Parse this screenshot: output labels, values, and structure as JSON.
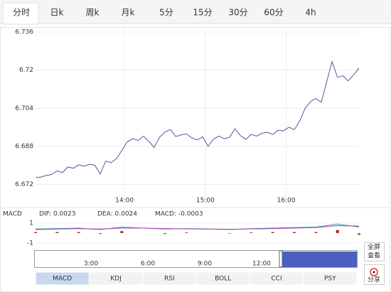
{
  "tabs": [
    "分时",
    "日k",
    "周k",
    "月k",
    "5分",
    "15分",
    "30分",
    "60分",
    "4h"
  ],
  "active_tab": 0,
  "chart_data": [
    {
      "type": "line",
      "color": "#4a5e9a",
      "grid": true,
      "x": [
        "12:54",
        "12:58",
        "13:02",
        "13:06",
        "13:10",
        "13:14",
        "13:18",
        "13:22",
        "13:26",
        "13:30",
        "13:34",
        "13:38",
        "13:42",
        "13:46",
        "13:50",
        "13:54",
        "13:58",
        "14:02",
        "14:06",
        "14:10",
        "14:14",
        "14:18",
        "14:22",
        "14:26",
        "14:30",
        "14:34",
        "14:38",
        "14:42",
        "14:46",
        "14:50",
        "14:54",
        "14:58",
        "15:02",
        "15:06",
        "15:10",
        "15:14",
        "15:18",
        "15:22",
        "15:26",
        "15:30",
        "15:34",
        "15:38",
        "15:42",
        "15:46",
        "15:50",
        "15:54",
        "15:58",
        "16:02",
        "16:06",
        "16:10",
        "16:14",
        "16:18",
        "16:22",
        "16:26",
        "16:30",
        "16:34",
        "16:38",
        "16:42",
        "16:46",
        "16:50",
        "16:54"
      ],
      "values": [
        6.6749,
        6.6751,
        6.6758,
        6.6762,
        6.6777,
        6.677,
        6.6793,
        6.6788,
        6.6802,
        6.6796,
        6.6805,
        6.6801,
        6.6764,
        6.6818,
        6.6812,
        6.6828,
        6.6862,
        6.6898,
        6.6913,
        6.6905,
        6.6923,
        6.6901,
        6.6875,
        6.6918,
        6.694,
        6.6951,
        6.6921,
        6.6928,
        6.6932,
        6.6915,
        6.6907,
        6.692,
        6.688,
        6.691,
        6.6923,
        6.6912,
        6.6918,
        6.6954,
        6.6925,
        6.6909,
        6.693,
        6.6923,
        6.6935,
        6.6939,
        6.693,
        6.6948,
        6.6945,
        6.696,
        6.695,
        6.6986,
        6.704,
        6.7068,
        6.7081,
        6.7065,
        6.715,
        6.7236,
        6.717,
        6.7176,
        6.7155,
        6.718,
        6.7208
      ],
      "xlim": [
        "12:54",
        "16:54"
      ],
      "xticks": [
        "14:00",
        "15:00",
        "16:00"
      ],
      "ylim": [
        6.6695,
        6.7375
      ],
      "yticks": [
        6.736,
        6.72,
        6.704,
        6.688,
        6.672
      ]
    },
    {
      "type": "macd",
      "title": "MACD",
      "x": [
        "12:54",
        "13:10",
        "13:26",
        "13:42",
        "13:58",
        "14:14",
        "14:30",
        "14:46",
        "15:02",
        "15:18",
        "15:34",
        "15:50",
        "16:06",
        "16:22",
        "16:38",
        "16:54"
      ],
      "xlim": [
        "12:54",
        "16:54"
      ],
      "series": [
        {
          "name": "DIF: 0.0023",
          "color": "#2aa8b0",
          "values": [
            0.4,
            0.45,
            0.5,
            0.35,
            0.6,
            0.5,
            0.4,
            0.45,
            0.4,
            0.35,
            0.45,
            0.5,
            0.55,
            0.6,
            0.9,
            0.6
          ]
        },
        {
          "name": "DEA: 0.0024",
          "color": "#b03aa0",
          "values": [
            0.35,
            0.4,
            0.45,
            0.4,
            0.5,
            0.5,
            0.45,
            0.42,
            0.4,
            0.38,
            0.42,
            0.45,
            0.5,
            0.55,
            0.75,
            0.7
          ]
        },
        {
          "name": "MACD: -0.0003",
          "type": "bar",
          "color": "#b22222",
          "down_color": "#3aa860",
          "values": [
            0.1,
            0.1,
            0.1,
            -0.1,
            0.2,
            0,
            -0.1,
            0.06,
            0,
            -0.06,
            0.06,
            0.1,
            0.1,
            0.1,
            0.3,
            -0.2
          ]
        }
      ],
      "ylim": [
        -1,
        1
      ],
      "yticks": [
        1,
        -1
      ]
    }
  ],
  "navigator": {
    "labels": [
      "3:00",
      "6:00",
      "9:00",
      "12:00"
    ]
  },
  "indicator_tabs": [
    "MACD",
    "KDJ",
    "RSI",
    "BOLL",
    "CCI",
    "PSY"
  ],
  "active_indicator": 0,
  "side": {
    "fullscreen": [
      "全屏",
      "查看"
    ],
    "share": "分享"
  }
}
